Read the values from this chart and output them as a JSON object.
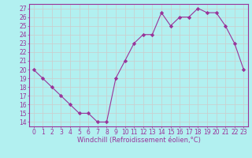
{
  "x": [
    0,
    1,
    2,
    3,
    4,
    5,
    6,
    7,
    8,
    9,
    10,
    11,
    12,
    13,
    14,
    15,
    16,
    17,
    18,
    19,
    20,
    21,
    22,
    23
  ],
  "y": [
    20,
    19,
    18,
    17,
    16,
    15,
    15,
    14,
    14,
    19,
    21,
    23,
    24,
    24,
    26.5,
    25,
    26,
    26,
    27,
    26.5,
    26.5,
    25,
    23,
    20
  ],
  "line_color": "#993399",
  "marker": "D",
  "marker_size": 2.2,
  "bg_color": "#b2f0f0",
  "grid_color": "#cccccc",
  "xlabel": "Windchill (Refroidissement éolien,°C)",
  "xlabel_color": "#993399",
  "ylabel_ticks": [
    14,
    15,
    16,
    17,
    18,
    19,
    20,
    21,
    22,
    23,
    24,
    25,
    26,
    27
  ],
  "ytick_labels": [
    "14",
    "15",
    "16",
    "17",
    "18",
    "19",
    "20",
    "21",
    "22",
    "23",
    "24",
    "25",
    "26",
    "27"
  ],
  "xtick_labels": [
    "0",
    "1",
    "2",
    "3",
    "4",
    "5",
    "6",
    "7",
    "8",
    "9",
    "10",
    "11",
    "12",
    "13",
    "14",
    "15",
    "16",
    "17",
    "18",
    "19",
    "20",
    "21",
    "22",
    "23"
  ],
  "ylim": [
    13.5,
    27.5
  ],
  "xlim": [
    -0.5,
    23.5
  ],
  "tick_color": "#993399",
  "label_fontsize": 5.5,
  "xlabel_fontsize": 6.0,
  "spine_color": "#993399"
}
